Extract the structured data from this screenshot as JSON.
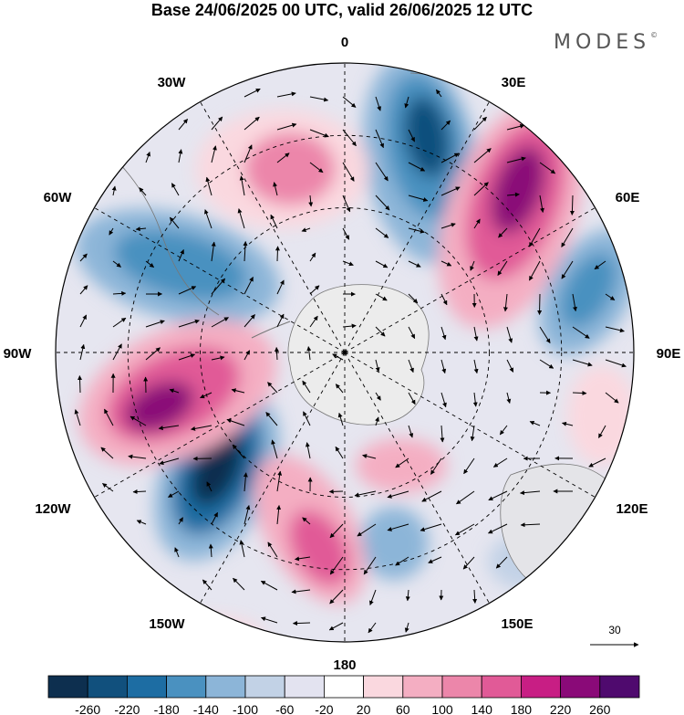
{
  "title": "Base 24/06/2025 00 UTC, valid 26/06/2025 12 UTC",
  "brand": {
    "name": "MODES",
    "mark": "©"
  },
  "longitude_labels": {
    "lon_0": "0",
    "lon_30e": "30E",
    "lon_60e": "60E",
    "lon_90e": "90E",
    "lon_120e": "120E",
    "lon_150e": "150E",
    "lon_180": "180",
    "lon_150w": "150W",
    "lon_120w": "120W",
    "lon_90w": "90W",
    "lon_60w": "60W",
    "lon_30w": "30W"
  },
  "reference_vector": {
    "label": "30"
  },
  "colorbar": {
    "ticks": [
      "-260",
      "-220",
      "-180",
      "-140",
      "-100",
      "-60",
      "-20",
      "20",
      "60",
      "100",
      "140",
      "180",
      "220",
      "260"
    ],
    "colors": [
      "#0d2f4f",
      "#11507d",
      "#1d6da3",
      "#4a91c0",
      "#8cb5d8",
      "#c2d2e6",
      "#e3e3f0",
      "#ffffff",
      "#fad8df",
      "#f4aec2",
      "#ec86aa",
      "#e15a97",
      "#c81e84",
      "#8a0a78",
      "#4f0a6e"
    ]
  }
}
